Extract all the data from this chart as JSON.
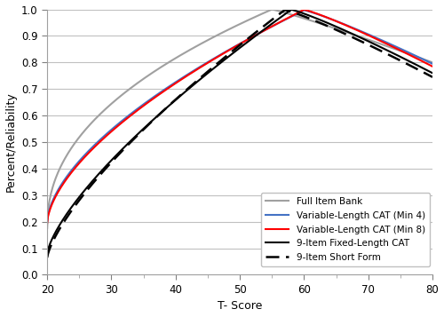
{
  "xlabel": "T- Score",
  "ylabel": "Percent/Reliability",
  "xlim": [
    20,
    80
  ],
  "ylim": [
    0,
    1
  ],
  "xticks": [
    20,
    30,
    40,
    50,
    60,
    70,
    80
  ],
  "yticks": [
    0,
    0.1,
    0.2,
    0.3,
    0.4,
    0.5,
    0.6,
    0.7,
    0.8,
    0.9,
    1
  ],
  "series": [
    {
      "label": "9-Item Fixed-Length CAT",
      "color": "#000000",
      "linestyle": "solid",
      "linewidth": 1.5,
      "params": [
        58,
        0.08,
        0.999,
        0.76,
        0.72,
        1.15
      ]
    },
    {
      "label": "Variable-Length CAT (Min 4)",
      "color": "#4472C4",
      "linestyle": "solid",
      "linewidth": 1.5,
      "params": [
        60,
        0.2,
        0.997,
        0.795,
        0.6,
        1.15
      ]
    },
    {
      "label": "Variable-Length CAT (Min 8)",
      "color": "#FF0000",
      "linestyle": "solid",
      "linewidth": 1.5,
      "params": [
        60,
        0.195,
        0.999,
        0.785,
        0.61,
        1.15
      ]
    },
    {
      "label": "Full Item Bank",
      "color": "#A0A0A0",
      "linestyle": "solid",
      "linewidth": 1.5,
      "params": [
        55,
        0.175,
        1.0,
        0.8,
        0.45,
        1.1
      ]
    },
    {
      "label": "9-Item Short Form",
      "color": "#000000",
      "linestyle": "dashed",
      "linewidth": 1.8,
      "params": [
        57,
        0.065,
        0.998,
        0.745,
        0.73,
        1.15
      ]
    }
  ],
  "background_color": "#ffffff",
  "grid_color": "#c0c0c0"
}
